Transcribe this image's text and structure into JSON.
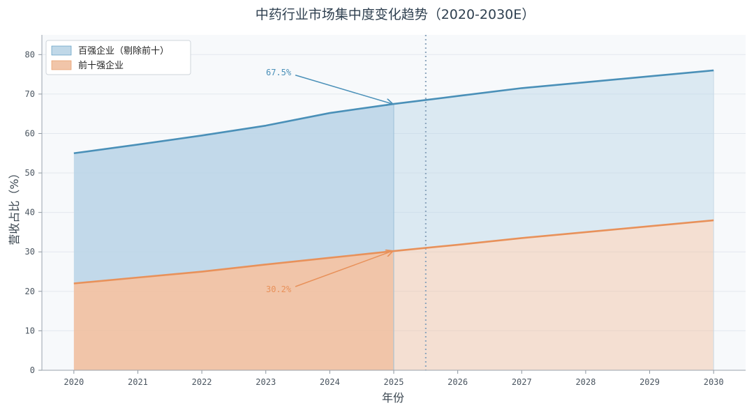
{
  "chart_data": {
    "type": "area",
    "title": "中药行业市场集中度变化趋势（2020-2030E）",
    "xlabel": "年份",
    "ylabel": "营收占比（%）",
    "x": [
      2020,
      2021,
      2022,
      2023,
      2024,
      2025,
      2026,
      2027,
      2028,
      2029,
      2030
    ],
    "xlim": [
      2019.5,
      2030.5
    ],
    "ylim": [
      0,
      85
    ],
    "yticks": [
      0,
      10,
      20,
      30,
      40,
      50,
      60,
      70,
      80
    ],
    "actual_end_x": 2025,
    "divider_x": 2025.5,
    "grid": true,
    "legend_position": "top-left",
    "series": [
      {
        "name": "百强企业（剔除前十）",
        "color": "#4a90b8",
        "fill": "#b9d4e6",
        "values": [
          55,
          57.2,
          59.5,
          62,
          65.2,
          67.5,
          69.5,
          71.5,
          73,
          74.5,
          76
        ]
      },
      {
        "name": "前十强企业",
        "color": "#e8915a",
        "fill": "#f0bfa0",
        "values": [
          22,
          23.5,
          25,
          26.8,
          28.5,
          30.2,
          31.8,
          33.5,
          35,
          36.5,
          38
        ]
      }
    ],
    "annotations": [
      {
        "text": "67.5%",
        "point": [
          2025,
          67.5
        ],
        "text_at": [
          2023.2,
          75.5
        ],
        "series": 0
      },
      {
        "text": "30.2%",
        "point": [
          2025,
          30.2
        ],
        "text_at": [
          2023.2,
          20.5
        ],
        "series": 1
      }
    ]
  }
}
